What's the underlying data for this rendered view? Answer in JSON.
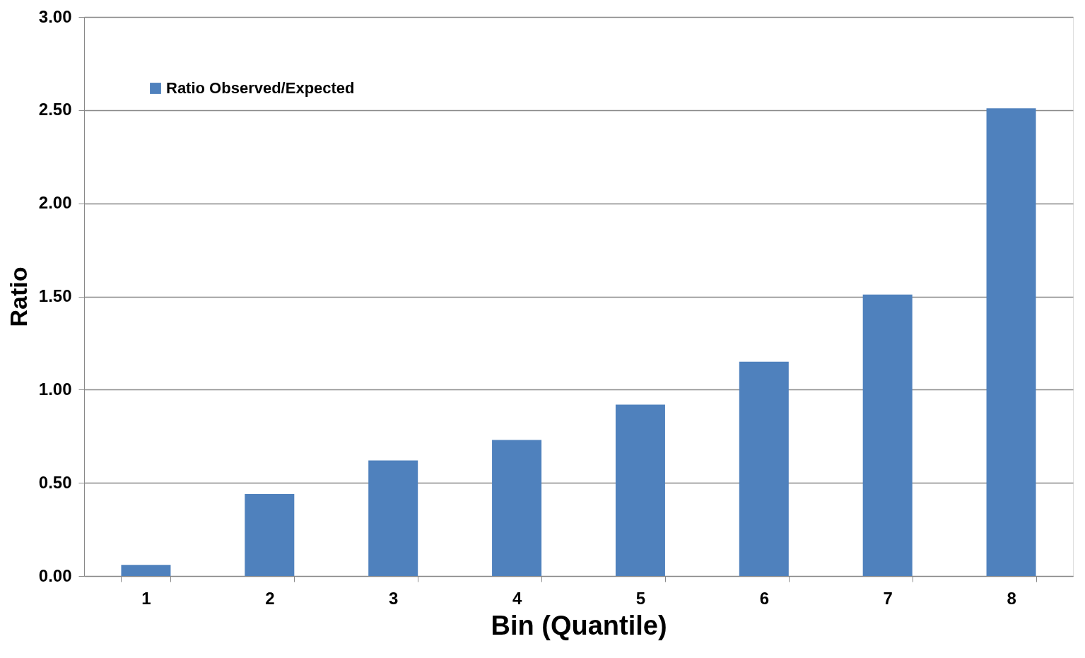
{
  "chart_data": {
    "type": "bar",
    "categories": [
      "1",
      "2",
      "3",
      "4",
      "5",
      "6",
      "7",
      "8"
    ],
    "series": [
      {
        "name": "Ratio Observed/Expected",
        "color": "#4f81bd",
        "values": [
          0.06,
          0.44,
          0.62,
          0.73,
          0.92,
          1.15,
          1.51,
          2.51
        ]
      }
    ],
    "xlabel": "Bin (Quantile)",
    "ylabel": "Ratio",
    "ylim": [
      0,
      3
    ],
    "yticks": [
      {
        "value": 0,
        "label": "0.00"
      },
      {
        "value": 0.5,
        "label": "0.50"
      },
      {
        "value": 1,
        "label": "1.00"
      },
      {
        "value": 1.5,
        "label": "1.50"
      },
      {
        "value": 2,
        "label": "2.00"
      },
      {
        "value": 2.5,
        "label": "2.50"
      },
      {
        "value": 3,
        "label": "3.00"
      }
    ],
    "grid": "y",
    "legend": "top left"
  }
}
